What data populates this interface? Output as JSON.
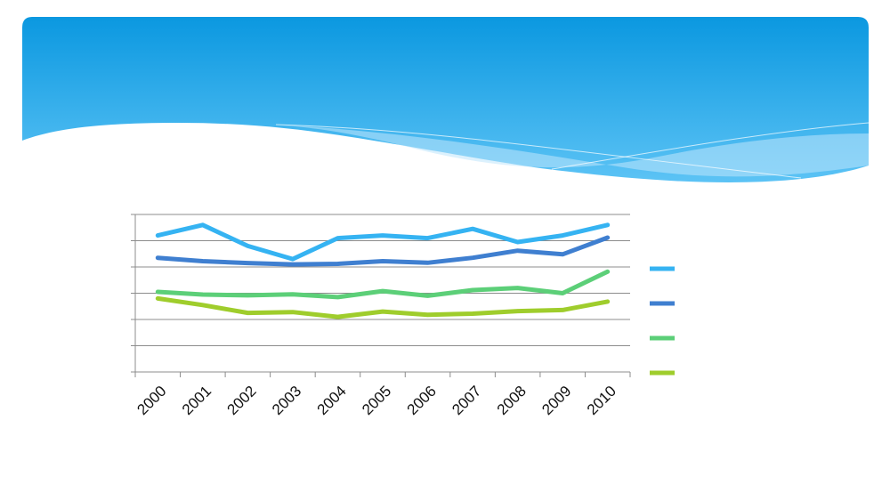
{
  "colors": {
    "banner_top": "#0b98e0",
    "banner_bottom": "#5cc3f5",
    "wave_light": "#bfe6fb",
    "axis": "#8c8c8c",
    "grid": "#8c8c8c"
  },
  "chart_data": {
    "type": "line",
    "title": "",
    "xlabel": "",
    "ylabel": "",
    "categories": [
      "2000",
      "2001",
      "2002",
      "2003",
      "2004",
      "2005",
      "2006",
      "2007",
      "2008",
      "2009",
      "2010"
    ],
    "ylim": [
      0,
      6
    ],
    "y_gridlines": [
      0,
      1,
      2,
      3,
      4,
      5,
      6
    ],
    "y_tick_labels_visible": false,
    "grid": true,
    "legend": "right",
    "series": [
      {
        "color": "#35b3f2",
        "values": [
          5.2,
          5.6,
          4.8,
          4.3,
          5.1,
          5.2,
          5.1,
          5.45,
          4.95,
          5.2,
          5.6
        ]
      },
      {
        "color": "#3f7fd0",
        "values": [
          4.35,
          4.22,
          4.15,
          4.1,
          4.12,
          4.22,
          4.16,
          4.35,
          4.62,
          4.48,
          5.12
        ]
      },
      {
        "color": "#5ccf78",
        "values": [
          3.05,
          2.95,
          2.92,
          2.96,
          2.85,
          3.08,
          2.9,
          3.12,
          3.2,
          3.0,
          3.82
        ]
      },
      {
        "color": "#9fcd2c",
        "values": [
          2.8,
          2.55,
          2.25,
          2.28,
          2.1,
          2.3,
          2.18,
          2.22,
          2.32,
          2.36,
          2.68
        ]
      }
    ]
  }
}
